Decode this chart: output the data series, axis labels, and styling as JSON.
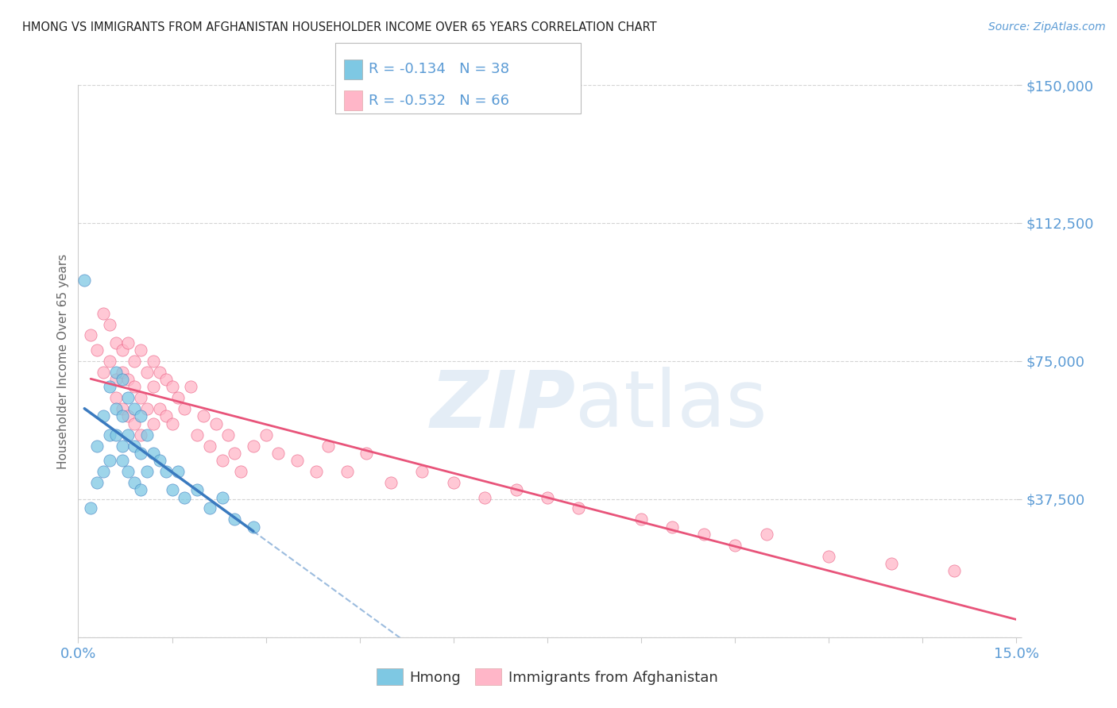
{
  "title": "HMONG VS IMMIGRANTS FROM AFGHANISTAN HOUSEHOLDER INCOME OVER 65 YEARS CORRELATION CHART",
  "source": "Source: ZipAtlas.com",
  "ylabel": "Householder Income Over 65 years",
  "xlim": [
    0.0,
    0.15
  ],
  "ylim": [
    0,
    150000
  ],
  "yticks": [
    0,
    37500,
    75000,
    112500,
    150000
  ],
  "ytick_labels": [
    "",
    "$37,500",
    "$75,000",
    "$112,500",
    "$150,000"
  ],
  "xticks": [
    0.0,
    0.015,
    0.03,
    0.045,
    0.06,
    0.075,
    0.09,
    0.105,
    0.12,
    0.135,
    0.15
  ],
  "xtick_labels": [
    "0.0%",
    "",
    "",
    "",
    "",
    "",
    "",
    "",
    "",
    "",
    "15.0%"
  ],
  "watermark_zip": "ZIP",
  "watermark_atlas": "atlas",
  "hmong_color": "#7ec8e3",
  "afghanistan_color": "#ffb6c8",
  "hmong_trendline_color": "#3a7abf",
  "afghanistan_trendline_color": "#e8547a",
  "hmong_R": -0.134,
  "hmong_N": 38,
  "afghanistan_R": -0.532,
  "afghanistan_N": 66,
  "title_color": "#333333",
  "axis_label_color": "#5b9bd5",
  "legend_label_hmong": "Hmong",
  "legend_label_afghanistan": "Immigrants from Afghanistan",
  "background_color": "#ffffff",
  "grid_color": "#d0d0d0",
  "hmong_x": [
    0.001,
    0.002,
    0.003,
    0.003,
    0.004,
    0.004,
    0.005,
    0.005,
    0.005,
    0.006,
    0.006,
    0.006,
    0.007,
    0.007,
    0.007,
    0.007,
    0.008,
    0.008,
    0.008,
    0.009,
    0.009,
    0.009,
    0.01,
    0.01,
    0.01,
    0.011,
    0.011,
    0.012,
    0.013,
    0.014,
    0.015,
    0.016,
    0.017,
    0.019,
    0.021,
    0.023,
    0.025,
    0.028
  ],
  "hmong_y": [
    97000,
    35000,
    52000,
    42000,
    60000,
    45000,
    68000,
    55000,
    48000,
    72000,
    62000,
    55000,
    70000,
    60000,
    52000,
    48000,
    65000,
    55000,
    45000,
    62000,
    52000,
    42000,
    60000,
    50000,
    40000,
    55000,
    45000,
    50000,
    48000,
    45000,
    40000,
    45000,
    38000,
    40000,
    35000,
    38000,
    32000,
    30000
  ],
  "afghanistan_x": [
    0.002,
    0.003,
    0.004,
    0.004,
    0.005,
    0.005,
    0.006,
    0.006,
    0.006,
    0.007,
    0.007,
    0.007,
    0.008,
    0.008,
    0.008,
    0.009,
    0.009,
    0.009,
    0.01,
    0.01,
    0.01,
    0.011,
    0.011,
    0.012,
    0.012,
    0.012,
    0.013,
    0.013,
    0.014,
    0.014,
    0.015,
    0.015,
    0.016,
    0.017,
    0.018,
    0.019,
    0.02,
    0.021,
    0.022,
    0.023,
    0.024,
    0.025,
    0.026,
    0.028,
    0.03,
    0.032,
    0.035,
    0.038,
    0.04,
    0.043,
    0.046,
    0.05,
    0.055,
    0.06,
    0.065,
    0.07,
    0.075,
    0.08,
    0.09,
    0.095,
    0.1,
    0.105,
    0.11,
    0.12,
    0.13,
    0.14
  ],
  "afghanistan_y": [
    82000,
    78000,
    88000,
    72000,
    85000,
    75000,
    80000,
    70000,
    65000,
    78000,
    72000,
    62000,
    80000,
    70000,
    60000,
    75000,
    68000,
    58000,
    78000,
    65000,
    55000,
    72000,
    62000,
    75000,
    68000,
    58000,
    72000,
    62000,
    70000,
    60000,
    68000,
    58000,
    65000,
    62000,
    68000,
    55000,
    60000,
    52000,
    58000,
    48000,
    55000,
    50000,
    45000,
    52000,
    55000,
    50000,
    48000,
    45000,
    52000,
    45000,
    50000,
    42000,
    45000,
    42000,
    38000,
    40000,
    38000,
    35000,
    32000,
    30000,
    28000,
    25000,
    28000,
    22000,
    20000,
    18000
  ]
}
